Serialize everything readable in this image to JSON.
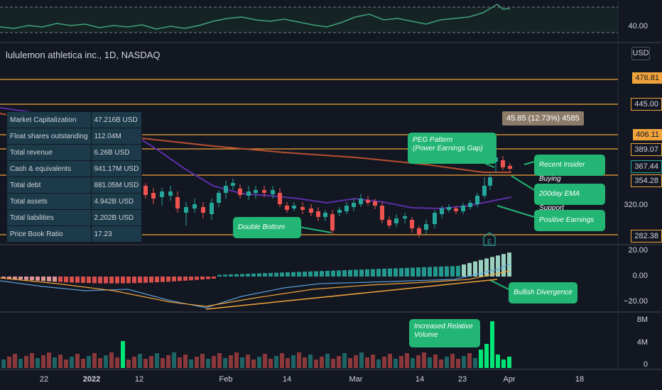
{
  "symbol_title": "lululemon athletica inc., 1D, NASDAQ",
  "currency_button": "USD",
  "fundamentals": [
    {
      "label": "Market Capitalization",
      "value": "47.216B USD"
    },
    {
      "label": "Float shares outstanding",
      "value": "112.04M"
    },
    {
      "label": "Total revenue",
      "value": "6.26B USD"
    },
    {
      "label": "Cash & equivalents",
      "value": "941.17M USD"
    },
    {
      "label": "Total debt",
      "value": "881.05M USD"
    },
    {
      "label": "Total assets",
      "value": "4.942B USD"
    },
    {
      "label": "Total liabilities",
      "value": "2.202B USD"
    },
    {
      "label": "Price Book Ratio",
      "value": "17.23"
    }
  ],
  "price_levels": [
    "476.81",
    "445.00",
    "406.11",
    "389.07",
    "354.28",
    "282.38"
  ],
  "current_price": "367.44",
  "price_axis_label": "320.00",
  "rsi_axis_label": "40.00",
  "tooltip": "45.85 (12.73%) 4585",
  "annotations": {
    "peg": [
      "PEG Pattern",
      "(Power Earnings Gap)"
    ],
    "insider": "Recent Insider Buying",
    "ema200": "200day EMA Support",
    "earnings": "Positive Earnings",
    "double_bottom": "Double Bottom",
    "divergence": "Bullish Divergence",
    "volume": [
      "Increased Relative",
      "Volume"
    ]
  },
  "earnings_marker": "E",
  "macd_axis": [
    "20.00",
    "0.00",
    "−20.00"
  ],
  "volume_axis": [
    "8M",
    "4M",
    "0"
  ],
  "x_axis": [
    "22",
    "2022",
    "12",
    "Feb",
    "14",
    "Mar",
    "14",
    "23",
    "Apr",
    "18"
  ],
  "colors": {
    "background": "#131722",
    "up": "#26a69a",
    "down": "#ef5350",
    "level": "#f0a33a",
    "callout": "#22b573",
    "ema_fast": "#5b2ea6",
    "ema_slow": "#b5502f"
  }
}
